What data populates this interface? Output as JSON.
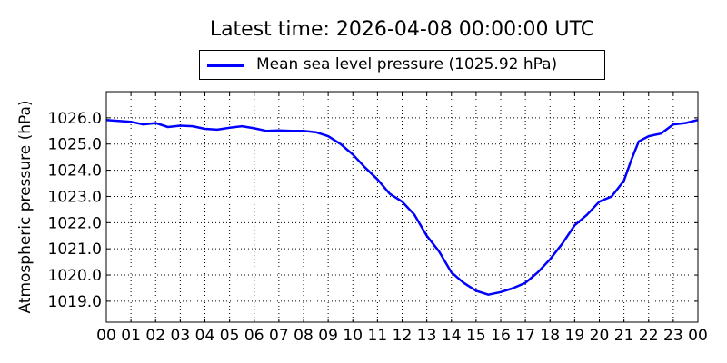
{
  "chart_data": {
    "type": "line",
    "title": "Latest time: 2026-04-08 00:00:00 UTC",
    "xlabel": "",
    "ylabel": "Atmospheric pressure (hPa)",
    "xlim": [
      0,
      24
    ],
    "ylim": [
      1018.2,
      1027.0
    ],
    "grid": true,
    "legend_placement": "top",
    "x_tick_labels": [
      "00",
      "01",
      "02",
      "03",
      "04",
      "05",
      "06",
      "07",
      "08",
      "09",
      "10",
      "11",
      "12",
      "13",
      "14",
      "15",
      "16",
      "17",
      "18",
      "19",
      "20",
      "21",
      "22",
      "23",
      "00"
    ],
    "y_ticks": [
      1019.0,
      1020.0,
      1021.0,
      1022.0,
      1023.0,
      1024.0,
      1025.0,
      1026.0
    ],
    "y_tick_labels": [
      "1019.0",
      "1020.0",
      "1021.0",
      "1022.0",
      "1023.0",
      "1024.0",
      "1025.0",
      "1026.0"
    ],
    "series": [
      {
        "name": "Mean sea level pressure (1025.92 hPa)",
        "color": "#0000ff",
        "x": [
          0,
          0.5,
          1,
          1.5,
          2,
          2.5,
          3,
          3.5,
          4,
          4.5,
          5,
          5.5,
          6,
          6.5,
          7,
          7.5,
          8,
          8.5,
          9,
          9.5,
          10,
          10.5,
          11,
          11.5,
          12,
          12.5,
          13,
          13.5,
          14,
          14.5,
          15,
          15.5,
          16,
          16.5,
          17,
          17.5,
          18,
          18.5,
          19,
          19.5,
          20,
          20.5,
          21,
          21.3,
          21.6,
          22,
          22.5,
          23,
          23.5,
          24
        ],
        "y": [
          1025.92,
          1025.88,
          1025.85,
          1025.75,
          1025.8,
          1025.65,
          1025.7,
          1025.68,
          1025.58,
          1025.55,
          1025.62,
          1025.68,
          1025.6,
          1025.5,
          1025.52,
          1025.5,
          1025.5,
          1025.45,
          1025.3,
          1025.0,
          1024.6,
          1024.1,
          1023.65,
          1023.1,
          1022.8,
          1022.3,
          1021.5,
          1020.9,
          1020.1,
          1019.7,
          1019.4,
          1019.25,
          1019.35,
          1019.5,
          1019.7,
          1020.1,
          1020.6,
          1021.2,
          1021.9,
          1022.3,
          1022.8,
          1023.0,
          1023.6,
          1024.4,
          1025.1,
          1025.3,
          1025.4,
          1025.75,
          1025.8,
          1025.92
        ]
      }
    ]
  }
}
